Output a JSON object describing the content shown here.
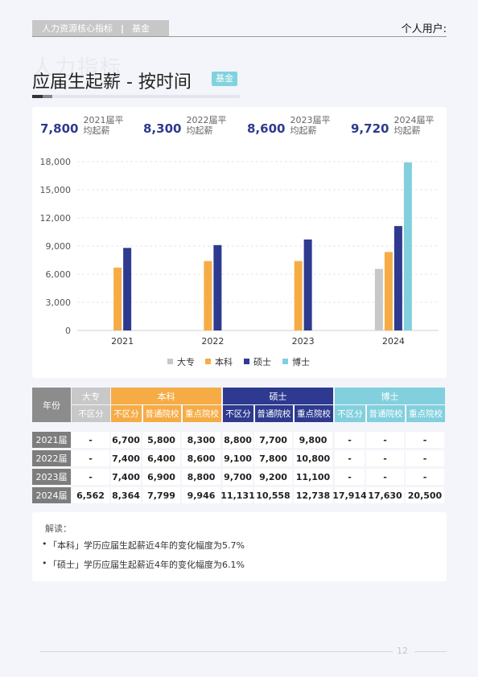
{
  "header": {
    "section_label": "人力资源核心指标",
    "separator": "|",
    "category_label": "基金",
    "user_label": "个人用户:"
  },
  "watermark": "人力指标",
  "page_title": "应届生起薪 - 按时间",
  "title_badge": "基金",
  "stats": [
    {
      "value": "7,800",
      "label": "2021届平均起薪"
    },
    {
      "value": "8,300",
      "label": "2022届平均起薪"
    },
    {
      "value": "8,600",
      "label": "2023届平均起薪"
    },
    {
      "value": "9,720",
      "label": "2024届平均起薪"
    }
  ],
  "colors": {
    "dazhuan": "#c8c8c8",
    "benke": "#f6ac45",
    "shuoshi": "#2e3a8f",
    "boshi": "#82d0dd",
    "year_header": "#8c8c8c",
    "accent_number": "#2e3a8f"
  },
  "chart_data": {
    "type": "bar",
    "categories": [
      "2021",
      "2022",
      "2023",
      "2024"
    ],
    "series": [
      {
        "name": "大专",
        "values": [
          null,
          null,
          null,
          6562
        ]
      },
      {
        "name": "本科",
        "values": [
          6700,
          7400,
          7400,
          8364
        ]
      },
      {
        "name": "硕士",
        "values": [
          8800,
          9100,
          9700,
          11131
        ]
      },
      {
        "name": "博士",
        "values": [
          null,
          null,
          null,
          17914
        ]
      }
    ],
    "yticks": [
      "0",
      "3,000",
      "6,000",
      "9,000",
      "12,000",
      "15,000",
      "18,000"
    ],
    "ylim": [
      0,
      18000
    ],
    "grid": true,
    "legend_position": "bottom"
  },
  "table": {
    "year_header": "年份",
    "groups": [
      {
        "name": "大专",
        "subs": [
          "不区分"
        ]
      },
      {
        "name": "本科",
        "subs": [
          "不区分",
          "普通院校",
          "重点院校"
        ]
      },
      {
        "name": "硕士",
        "subs": [
          "不区分",
          "普通院校",
          "重点院校"
        ]
      },
      {
        "name": "博士",
        "subs": [
          "不区分",
          "普通院校",
          "重点院校"
        ]
      }
    ],
    "rows": [
      {
        "year": "2021届",
        "cells": [
          "-",
          "6,700",
          "5,800",
          "8,300",
          "8,800",
          "7,700",
          "9,800",
          "-",
          "-",
          "-"
        ]
      },
      {
        "year": "2022届",
        "cells": [
          "-",
          "7,400",
          "6,400",
          "8,600",
          "9,100",
          "7,800",
          "10,800",
          "-",
          "-",
          "-"
        ]
      },
      {
        "year": "2023届",
        "cells": [
          "-",
          "7,400",
          "6,900",
          "8,800",
          "9,700",
          "9,200",
          "11,100",
          "-",
          "-",
          "-"
        ]
      },
      {
        "year": "2024届",
        "cells": [
          "6,562",
          "8,364",
          "7,799",
          "9,946",
          "11,131",
          "10,558",
          "12,738",
          "17,914",
          "17,630",
          "20,500"
        ]
      }
    ]
  },
  "notes": {
    "title": "解读：",
    "items": [
      "「本科」学历应届生起薪近4年的变化幅度为5.7%",
      "「硕士」学历应届生起薪近4年的变化幅度为6.1%"
    ]
  },
  "page_number": "12"
}
